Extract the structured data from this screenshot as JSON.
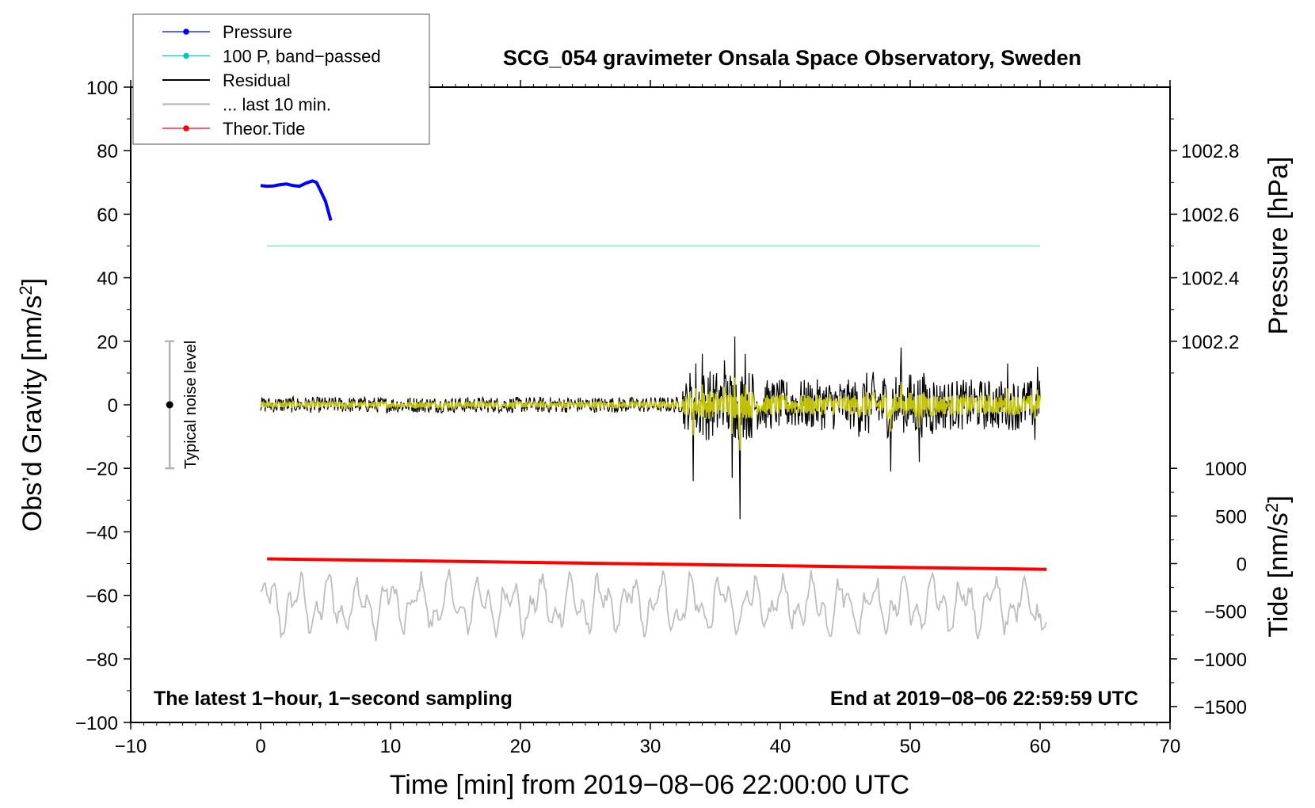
{
  "chart_data": {
    "type": "line",
    "title": "SCG_054 gravimeter Onsala Space Observatory, Sweden",
    "xlabel": "Time [min] from 2019−08−06 22:00:00 UTC",
    "ylabel_left_main": "Obs’d Gravity [nm/s",
    "ylabel_left_sup": "2",
    "ylabel_left_tail": "]",
    "ylabel_right_pressure": "Pressure [hPa]",
    "ylabel_right_tide_main": "Tide [nm/s",
    "ylabel_right_tide_sup": "2",
    "ylabel_right_tide_tail": "]",
    "note_left": "The latest 1−hour, 1−second sampling",
    "note_right": "End at 2019−08−06 22:59:59 UTC",
    "noise_label": "Typical noise level",
    "noise_range": [
      -20,
      20
    ],
    "xlim": [
      -10,
      70
    ],
    "ylim": [
      -100,
      100
    ],
    "x_ticks": [
      "−10",
      "0",
      "10",
      "20",
      "30",
      "40",
      "50",
      "60",
      "70"
    ],
    "x_tick_values": [
      -10,
      0,
      10,
      20,
      30,
      40,
      50,
      60,
      70
    ],
    "y_ticks": [
      "−100",
      "−80",
      "−60",
      "−40",
      "−20",
      "0",
      "20",
      "40",
      "60",
      "80",
      "100"
    ],
    "y_tick_values": [
      -100,
      -80,
      -60,
      -40,
      -20,
      0,
      20,
      40,
      60,
      80,
      100
    ],
    "pressure_ticks": [
      "1002.2",
      "1002.4",
      "1002.6",
      "1002.8"
    ],
    "pressure_tick_values": [
      1002.2,
      1002.4,
      1002.6,
      1002.8
    ],
    "pressure_axis_map": {
      "value_at_gravity_0": 1002.0,
      "hpa_per_nm_s2": 0.01
    },
    "tide_ticks": [
      "1000",
      "500",
      "0",
      "−500",
      "−1000",
      "−1500"
    ],
    "tide_tick_values": [
      1000,
      500,
      0,
      -500,
      -1000,
      -1500
    ],
    "tide_axis_map": {
      "value_at_gravity_neg50": 0,
      "nm_s2_per_gravity_unit": 33.3333
    },
    "legend": {
      "placement": "top-left",
      "entries": [
        {
          "label": "Pressure",
          "color": "#0000ff",
          "marker": true
        },
        {
          "label": "100 P, band−passed",
          "color": "#00c8c8",
          "marker": true
        },
        {
          "label": "Residual",
          "color": "#000000",
          "marker": false
        },
        {
          "label": "... last 10 min.",
          "color": "#bebebe",
          "marker": false
        },
        {
          "label": "Theor.Tide",
          "color": "#ff0000",
          "marker": true
        }
      ]
    },
    "series": [
      {
        "name": "Pressure",
        "color": "#0000ff",
        "units": "hPa",
        "x": [
          0,
          0.5,
          1,
          1.5,
          2,
          2.5,
          3,
          3.5,
          4,
          4.3,
          4.6,
          5,
          5.4
        ],
        "values": [
          1002.69,
          1002.688,
          1002.689,
          1002.693,
          1002.695,
          1002.69,
          1002.688,
          1002.698,
          1002.705,
          1002.7,
          1002.675,
          1002.64,
          1002.58
        ]
      },
      {
        "name": "100 P, band−passed",
        "color": "#9ae6e6",
        "x": [
          0.5,
          60
        ],
        "values": [
          50,
          50
        ]
      },
      {
        "name": "Theor.Tide",
        "color": "#ff0000",
        "units": "nm/s2",
        "x": [
          0.5,
          60.5
        ],
        "values": [
          -48.5,
          -51.8
        ]
      },
      {
        "name": "Residual",
        "color": "#000000",
        "segments": [
          {
            "x_range": [
              0,
              32.5
            ],
            "amplitude": 2.5
          },
          {
            "x_range": [
              32.5,
              60
            ],
            "amplitude": 8
          }
        ],
        "peaks": [
          {
            "x": 33.3,
            "y": -24
          },
          {
            "x": 33.5,
            "y": 13
          },
          {
            "x": 34,
            "y": 16
          },
          {
            "x": 35.7,
            "y": 14
          },
          {
            "x": 36.3,
            "y": -23
          },
          {
            "x": 36.5,
            "y": 21.5
          },
          {
            "x": 36.9,
            "y": -36
          },
          {
            "x": 37.3,
            "y": 16
          },
          {
            "x": 48.5,
            "y": -21
          },
          {
            "x": 49.3,
            "y": 18
          },
          {
            "x": 50.7,
            "y": -18
          },
          {
            "x": 57.5,
            "y": 13
          },
          {
            "x": 59.6,
            "y": -11
          },
          {
            "x": 59.8,
            "y": 12
          }
        ]
      },
      {
        "name": "Residual (smoothed)",
        "color": "#d4d400",
        "amplitude_ratio": 0.4
      },
      {
        "name": "... last 10 min.",
        "color": "#bebebe",
        "x_range": [
          0,
          60.5
        ],
        "mean": -63,
        "min": -76,
        "max": -49
      }
    ]
  }
}
